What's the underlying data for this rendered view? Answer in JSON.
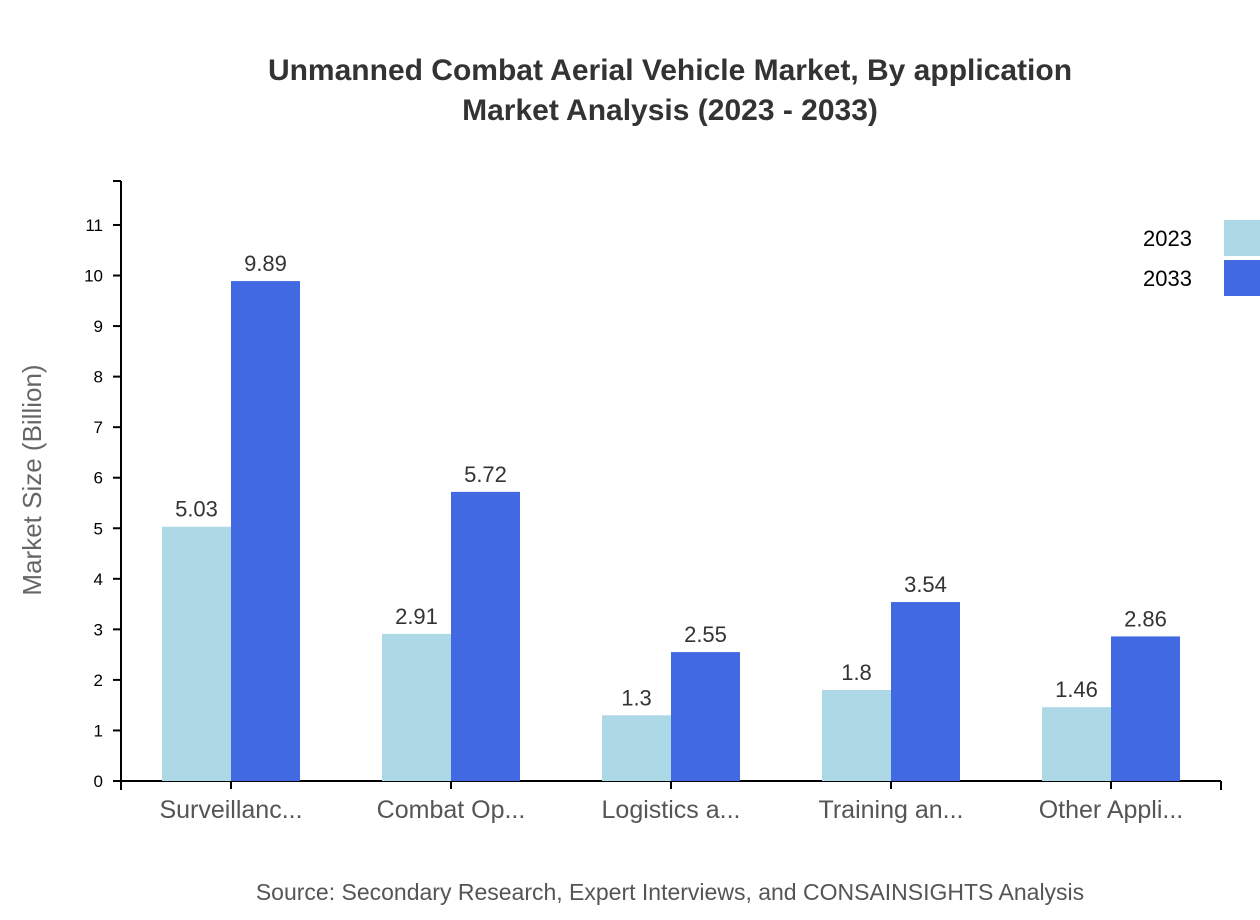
{
  "chart_data": {
    "type": "bar",
    "title": "Unmanned Combat Aerial Vehicle Market, By application",
    "subtitle": "Market Analysis (2023 - 2033)",
    "xlabel": "",
    "ylabel": "Market Size (Billion)",
    "categories": [
      "Surveillanc...",
      "Combat Op...",
      "Logistics a...",
      "Training an...",
      "Other Appli..."
    ],
    "series": [
      {
        "name": "2023",
        "color": "#add8e6",
        "values": [
          5.03,
          2.91,
          1.3,
          1.8,
          1.46
        ]
      },
      {
        "name": "2033",
        "color": "#4169e1",
        "values": [
          9.89,
          5.72,
          2.55,
          3.54,
          2.86
        ]
      }
    ],
    "ylim": [
      0,
      11.87
    ],
    "yticks": [
      0,
      1,
      2,
      3,
      4,
      5,
      6,
      7,
      8,
      9,
      10,
      11
    ],
    "grid": false,
    "legend_position": "top-right",
    "source": "Source: Secondary Research, Expert Interviews, and CONSAINSIGHTS Analysis"
  }
}
